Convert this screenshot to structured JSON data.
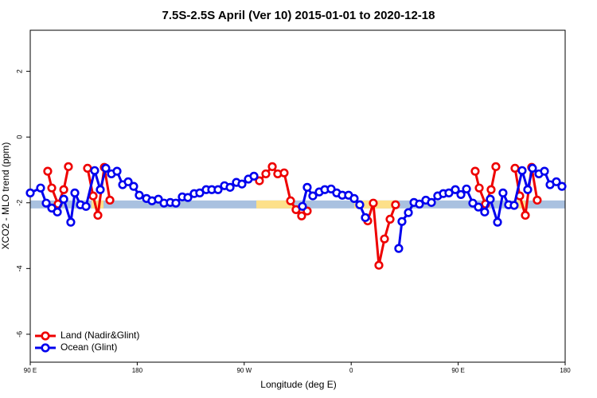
{
  "chart_data": {
    "type": "line",
    "title": "7.5S-2.5S April (Ver 10)   2015-01-01 to 2020-12-18",
    "xlabel": "Longitude (deg E)",
    "ylabel": "XCO2 - MLO trend (ppm)",
    "xlim": [
      90,
      540
    ],
    "xticks": [
      {
        "value": 90,
        "label": "90 E"
      },
      180,
      {
        "value": 270,
        "label": "90 W"
      },
      {
        "value": 360,
        "label": "0"
      },
      {
        "value": 450,
        "label": "90 E"
      },
      {
        "value": 540,
        "label": "180"
      }
    ],
    "ylim": [
      -6.85,
      3.25
    ],
    "yticks": [
      -6,
      -4,
      -2,
      0,
      2
    ],
    "legend": "bottom-left",
    "band": {
      "value": -2.05,
      "color": "#a9c1e0",
      "land_color": "#fde08a",
      "land_ranges": [
        [
          141.6,
          151.6
        ],
        [
          280.2,
          311
        ],
        [
          362.5,
          399.4
        ],
        [
          496.5,
          506.5
        ]
      ]
    },
    "series": [
      {
        "name": "Land (Nadir&Glint)",
        "color": "#ee0000",
        "x": [
          104.7,
          108.1,
          113.4,
          118.2,
          122.1,
          null,
          138.2,
          142.9,
          146.9,
          152.3,
          157,
          null,
          282.8,
          288.2,
          293.6,
          298.2,
          303.6,
          309,
          313.6,
          318.3,
          323,
          null,
          373.9,
          378.6,
          383.3,
          388,
          392.7,
          397.3,
          null,
          464.3,
          467.7,
          473,
          477.7,
          481.7,
          null,
          497.8,
          501.8,
          506.5,
          511.8,
          516.5
        ],
        "values": [
          -1.04,
          -1.55,
          -2.04,
          -1.6,
          -0.9,
          null,
          -0.95,
          -1.79,
          -2.38,
          -0.92,
          -1.92,
          null,
          -1.33,
          -1.12,
          -0.9,
          -1.12,
          -1.09,
          -1.94,
          -2.21,
          -2.4,
          -2.25,
          null,
          -2.55,
          -2.01,
          -3.9,
          -3.1,
          -2.5,
          -2.06,
          null,
          -1.04,
          -1.55,
          -2.04,
          -1.6,
          -0.9,
          null,
          -0.95,
          -1.79,
          -2.38,
          -0.92,
          -1.92
        ]
      },
      {
        "name": "Ocean (Glint)",
        "color": "#0000ee",
        "x": [
          90,
          98.7,
          103.4,
          108.1,
          112.8,
          118.2,
          124.1,
          127.5,
          132.2,
          136.9,
          144.2,
          148.9,
          153.6,
          158.3,
          163,
          167.7,
          172.4,
          177,
          181.7,
          187.8,
          192.4,
          197.8,
          202.5,
          207.8,
          212.5,
          217.9,
          222.6,
          227.9,
          232.6,
          238,
          242.7,
          248,
          253.4,
          258.1,
          263.4,
          268.1,
          273.5,
          278.2,
          null,
          319,
          323,
          327.7,
          333.1,
          337.8,
          343.1,
          347.8,
          352.5,
          357.8,
          362.5,
          367.2,
          371.9,
          null,
          400,
          402.7,
          408.1,
          412.8,
          417.4,
          422.8,
          427.5,
          432.8,
          437.5,
          442.2,
          447.6,
          452.3,
          457,
          462.3,
          467,
          472.3,
          477,
          483.1,
          487.7,
          492.4,
          497.1,
          503.8,
          508.5,
          512.5,
          517.9,
          522.6,
          527.3,
          532.6,
          537.3
        ],
        "values": [
          -1.7,
          -1.55,
          -2.01,
          -2.16,
          -2.28,
          -1.89,
          -2.59,
          -1.7,
          -2.06,
          -2.11,
          -1.02,
          -1.6,
          -0.95,
          -1.12,
          -1.04,
          -1.45,
          -1.36,
          -1.5,
          -1.77,
          -1.87,
          -1.94,
          -1.89,
          -2.01,
          -1.99,
          -2.01,
          -1.82,
          -1.84,
          -1.72,
          -1.7,
          -1.6,
          -1.6,
          -1.6,
          -1.48,
          -1.53,
          -1.38,
          -1.43,
          -1.28,
          -1.19,
          null,
          -2.11,
          -1.53,
          -1.79,
          -1.67,
          -1.6,
          -1.58,
          -1.7,
          -1.77,
          -1.77,
          -1.87,
          -2.06,
          -2.45,
          null,
          -3.39,
          -2.57,
          -2.3,
          -1.99,
          -2.04,
          -1.92,
          -1.99,
          -1.79,
          -1.72,
          -1.7,
          -1.6,
          -1.75,
          -1.58,
          -2.01,
          -2.13,
          -2.28,
          -1.89,
          -2.59,
          -1.7,
          -2.06,
          -2.08,
          -1.02,
          -1.6,
          -0.95,
          -1.12,
          -1.04,
          -1.45,
          -1.36,
          -1.5
        ]
      }
    ]
  }
}
